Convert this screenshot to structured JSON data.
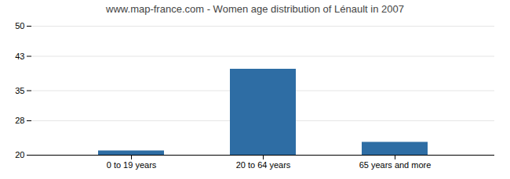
{
  "chart_data": {
    "type": "bar",
    "title": "www.map-france.com - Women age distribution of Lénault in 2007",
    "categories": [
      "0 to 19 years",
      "20 to 64 years",
      "65 years and more"
    ],
    "values": [
      21,
      40,
      23
    ],
    "color": "#2e6da4",
    "ylim": [
      20,
      50
    ],
    "yticks": [
      20,
      28,
      35,
      43,
      50
    ],
    "grid": true
  }
}
